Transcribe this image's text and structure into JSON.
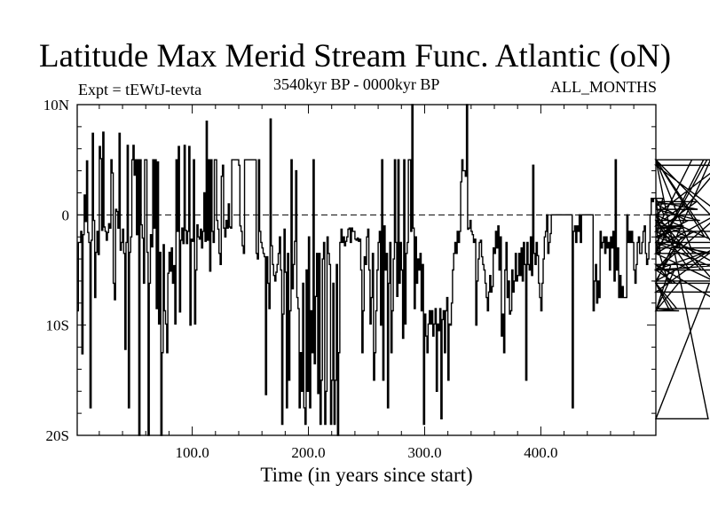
{
  "page": {
    "title": "Latitude Max Merid Stream Func. Atlantic (oN)",
    "expt_label": "Expt = tEWtJ-tevta",
    "period_label": "3540kyr BP - 0000kyr BP",
    "months_label": "ALL_MONTHS"
  },
  "chart_data": {
    "type": "line",
    "title": "Latitude Max Merid Stream Func. Atlantic (oN)",
    "xlabel": "Time (in years since start)",
    "ylabel": "",
    "xlim": [
      1,
      499
    ],
    "ylim": [
      -20,
      10
    ],
    "x_ticks": [
      100,
      200,
      300,
      400
    ],
    "x_tick_labels": [
      "100.0",
      "200.0",
      "300.0",
      "400.0"
    ],
    "y_ticks": [
      10,
      0,
      -10,
      -20
    ],
    "y_tick_labels": [
      "10N",
      "0",
      "10S",
      "20S"
    ],
    "zero_line": "dashed",
    "grid": false,
    "series": [
      {
        "values": [
          -8.7,
          -2.5,
          -2.5,
          -1.5,
          -12.6,
          -1.8,
          1.8,
          -0.6,
          4.9,
          -1.6,
          -2.5,
          -17.5,
          -2.3,
          7.4,
          -0.5,
          -7.5,
          -3.4,
          -1.5,
          -3.6,
          6.2,
          5.1,
          -1.4,
          7.5,
          -1.1,
          -1.5,
          -2.3,
          -1.6,
          -0.8,
          -1.2,
          5.0,
          3.8,
          -6.2,
          -7.7,
          0.5,
          0.3,
          -1.2,
          7.4,
          -3.2,
          -2.5,
          -1.3,
          -3.5,
          -12.2,
          -2.5,
          6.3,
          -17.5,
          -3.4,
          -2.0,
          5.0,
          6.3,
          3.6,
          5.0,
          -1.8,
          5.0,
          -20.0,
          5.0,
          -0.9,
          -2.1,
          -6.2,
          5.0,
          5.0,
          -3.4,
          -20.0,
          -6.2,
          -1.8,
          -2.9,
          5.0,
          -1.2,
          5.0,
          -8.5,
          4.8,
          -9.9,
          -3.4,
          -20.0,
          -12.5,
          -2.7,
          -8.7,
          -9.9,
          -12.5,
          -5.3,
          -3.4,
          -5.1,
          -3.0,
          -6.2,
          -4.6,
          -9.9,
          5.0,
          -1.5,
          6.2,
          -8.8,
          -2.3,
          -1.2,
          -2.6,
          6.3,
          -1.4,
          -2.6,
          -1.5,
          6.2,
          -10.0,
          -2.2,
          -2.4,
          5.0,
          -9.9,
          -5.0,
          -0.9,
          -2.0,
          -2.2,
          -1.3,
          -3.0,
          -1.5,
          2.0,
          -2.4,
          8.5,
          -2.3,
          5.0,
          -5.1,
          5.0,
          -1.5,
          -2.5,
          5.0,
          5.0,
          -0.5,
          -1.3,
          -3.5,
          -4.5,
          3.5,
          4.5,
          -1.2,
          -2.0,
          -0.5,
          -1.2,
          1.0,
          -1.1,
          -1.2,
          5.0,
          5.0,
          5.0,
          5.0,
          5.0,
          5.0,
          4.5,
          -1.0,
          -1.5,
          -2.8,
          -3.5,
          5.0,
          5.0,
          5.0,
          5.0,
          5.0,
          5.0,
          5.0,
          5.0,
          5.0,
          5.0,
          -3.5,
          -4.0,
          5.0,
          -1.5,
          -2.5,
          -3.0,
          -3.5,
          -3.8,
          -16.3,
          -3.8,
          -6.2,
          -8.5,
          8.7,
          -2.8,
          -4.5,
          -5.5,
          -6.0,
          -5.2,
          -4.5,
          -3.5,
          -2.0,
          -5.0,
          -19.0,
          -9.0,
          -1.3,
          -5.2,
          -17.5,
          -3.5,
          -15.0,
          -8.7,
          5.0,
          -6.7,
          -4.5,
          -2.4,
          4.0,
          -7.5,
          -8.5,
          -17.5,
          -12.5,
          -16.0,
          -6.2,
          -17.5,
          -19.0,
          -5.0,
          -16.0,
          -2.0,
          -17.5,
          -8.7,
          -12.5,
          5.0,
          -13.5,
          -7.4,
          -3.5,
          -16.2,
          -3.5,
          -19.0,
          -15.0,
          -4.0,
          -2.5,
          -19.0,
          -16.0,
          -2.0,
          -3.5,
          -4.5,
          -19.0,
          -15.0,
          -6.2,
          -19.0,
          -15.0,
          -4.5,
          -20.0,
          -12.5,
          -2.5,
          -1.3,
          -2.5,
          -2.0,
          -2.8,
          -2.4,
          -2.0,
          -1.3,
          -1.2,
          -2.5,
          -1.2,
          -1.5,
          -1.5,
          -2.2,
          -2.3,
          -2.1,
          -2.4,
          -2.2,
          -5.0,
          -12.5,
          -8.7,
          -3.8,
          -4.5,
          -2.0,
          -1.3,
          -5.0,
          -9.9,
          -7.5,
          -3.5,
          -15.0,
          -12.5,
          -8.7,
          -5.0,
          -2.5,
          -1.5,
          -10.0,
          5.0,
          -15.0,
          -1.0,
          -5.0,
          -3.5,
          -17.5,
          -6.2,
          -2.5,
          -12.5,
          -8.7,
          -4.0,
          5.0,
          -2.5,
          -7.4,
          5.0,
          -6.2,
          -2.5,
          -5.0,
          -11.2,
          5.0,
          -9.9,
          -3.5,
          -2.5,
          5.0,
          5.0,
          -1.5,
          10.0,
          -1.2,
          -8.5,
          -2.0,
          -6.2,
          -4.0,
          -5.0,
          -3.5,
          -8.7,
          -4.5,
          -19.0,
          -9.0,
          -11.0,
          -12.5,
          -9.9,
          -8.7,
          -9.9,
          -8.7,
          -11.0,
          -9.9,
          -8.5,
          -16.0,
          -9.9,
          -10.5,
          -8.5,
          -18.5,
          -9.5,
          -8.7,
          -12.5,
          -8.7,
          -7.5,
          -15.0,
          -9.9,
          -10.0,
          -8.0,
          -5.0,
          -3.5,
          -2.5,
          -3.5,
          -1.5,
          -2.5,
          -1.5,
          3.0,
          5.0,
          4.0,
          4.0,
          3.5,
          10.0,
          -1.3,
          -1.2,
          -0.5,
          -1.5,
          -1.8,
          -2.5,
          -2.2,
          -10.0,
          -6.0,
          -4.0,
          -2.5,
          -2.3,
          -3.8,
          -4.5,
          -5.0,
          -6.2,
          -7.5,
          -8.7,
          -7.0,
          -5.5,
          -7.0,
          -6.5,
          -3.0,
          -3.5,
          -1.5,
          -3.0,
          -1.0,
          -5.0,
          -2.0,
          -11.0,
          -9.0,
          -12.5,
          -5.0,
          -2.5,
          -7.5,
          -6.0,
          -9.0,
          -8.7,
          -5.0,
          -7.0,
          -6.0,
          -3.5,
          -6.0,
          -5.5,
          -3.5,
          -5.5,
          -3.0,
          -6.0,
          -2.5,
          -4.5,
          -15.0,
          -2.5,
          -4.5,
          -5.0,
          -2.0,
          -5.5,
          4.5,
          -3.5,
          -4.5,
          -2.5,
          -3.7,
          -6.2,
          -7.5,
          -8.7,
          -6.2,
          -4.0,
          -2.0,
          -1.5,
          0.0,
          -3.5,
          -2.5,
          -1.7,
          0.0,
          0.0,
          0.0,
          0.0,
          0.0,
          0.0,
          0.0,
          0.0,
          0.0,
          0.0,
          0.0,
          0.0,
          0.0,
          0.0,
          0.0,
          0.0,
          0.0,
          0.0,
          -17.5,
          -1.5,
          -1.0,
          -2.5,
          -1.0,
          -1.5,
          0.0,
          -2.5,
          0.0,
          0.0,
          0.0,
          0.0,
          0.0,
          0.0,
          0.0,
          0.0,
          0.0,
          0.0,
          -8.7,
          -6.0,
          -4.5,
          -8.0,
          -6.0,
          -7.5,
          -1.5,
          -3.0,
          -2.5,
          -2.0,
          -3.5,
          -2.0,
          -3.0,
          -2.5,
          -5.0,
          -2.0,
          -3.0,
          -1.5,
          -6.0,
          5.0,
          -5.0,
          -3.0,
          -7.5,
          -5.5,
          -7.5,
          -6.5,
          -7.5,
          -7.5,
          -7.5,
          0.0,
          -2.5,
          -1.5,
          -2.5,
          -1.5,
          -2.5,
          -5.0,
          -6.2,
          -4.5,
          -2.5,
          -2.0,
          -3.5,
          -3.5,
          -2.5,
          -1.5,
          -1.0,
          -3.5,
          -4.5,
          -4.0,
          -2.5,
          0.0,
          1.5,
          1.2,
          1.5,
          1.5,
          1.5,
          1.5,
          1.5,
          -1.0,
          -3.5,
          -1.0,
          1.5,
          0.0,
          0.0,
          0.0,
          -2.5,
          -6.2,
          -8.7,
          -4.5,
          -6.2,
          -8.7,
          -5.0,
          -6.2,
          -8.5,
          -8.7,
          -8.7,
          -6.0,
          -2.0,
          -1.2,
          -1.0,
          1.0,
          -0.5,
          -2.0,
          -0.5,
          -5.0,
          -1.5,
          5.0,
          -3.5,
          -1.5,
          -1.5,
          1.2,
          0.5,
          -0.5,
          -0.5,
          -5.0,
          -3.5,
          5.0,
          -2.0,
          -3.5,
          5.0,
          -18.5,
          -6.2,
          5.0,
          -2.5,
          -3.5,
          -6.0,
          -3.0,
          0.0,
          -2.5,
          -5.0,
          0.0,
          4.5,
          0.0,
          -7.0,
          -2.5,
          5.0,
          -1.5,
          -5.0,
          -4.5,
          -8.5
        ]
      }
    ]
  }
}
